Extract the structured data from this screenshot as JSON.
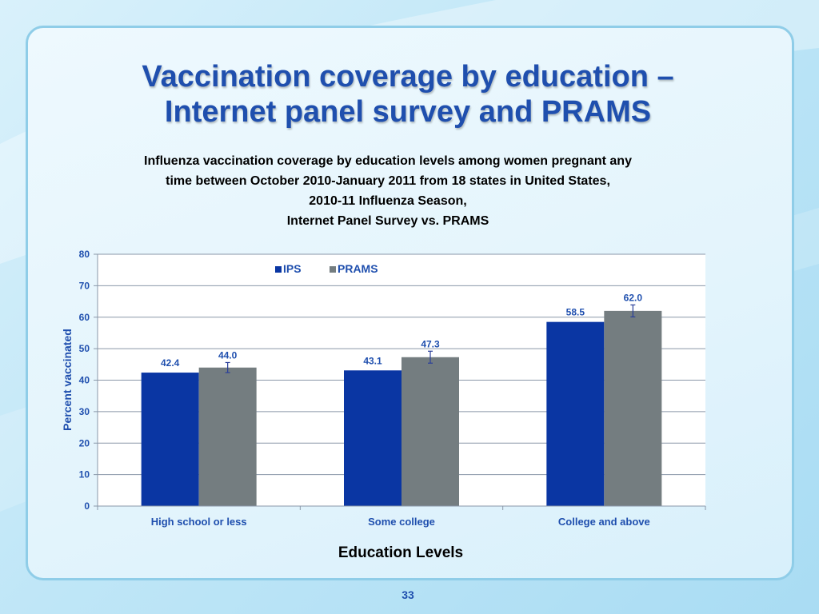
{
  "slide": {
    "title_lines": [
      "Vaccination coverage by education –",
      "Internet panel survey and PRAMS"
    ],
    "page_number": "33",
    "colors": {
      "title": "#1f4fae",
      "card_border": "#8fcde8"
    }
  },
  "chart_data": {
    "type": "bar",
    "title_lines": [
      "Influenza vaccination coverage by education levels among women pregnant any",
      "time between October 2010-January 2011 from 18 states in United States,",
      "2010-11 Influenza Season,",
      "Internet Panel Survey vs. PRAMS"
    ],
    "categories": [
      "High school or less",
      "Some college",
      "College and above"
    ],
    "series": [
      {
        "name": "IPS",
        "values": [
          42.4,
          43.1,
          58.5
        ],
        "color": "#0a36a3",
        "error_bars": false
      },
      {
        "name": "PRAMS",
        "values": [
          44.0,
          47.3,
          62.0
        ],
        "color": "#747d80",
        "error_bars": true,
        "error_low": [
          42.4,
          45.4,
          60.1
        ],
        "error_high": [
          45.6,
          49.2,
          63.9
        ]
      }
    ],
    "data_labels": [
      "42.4",
      "43.1",
      "58.5",
      "44.0",
      "47.3",
      "62.0"
    ],
    "xlabel": "Education Levels",
    "ylabel": "Percent vaccinated",
    "ylim": [
      0,
      80
    ],
    "yticks": [
      0,
      10,
      20,
      30,
      40,
      50,
      60,
      70,
      80
    ],
    "grid": true,
    "legend_position": "top-center"
  }
}
